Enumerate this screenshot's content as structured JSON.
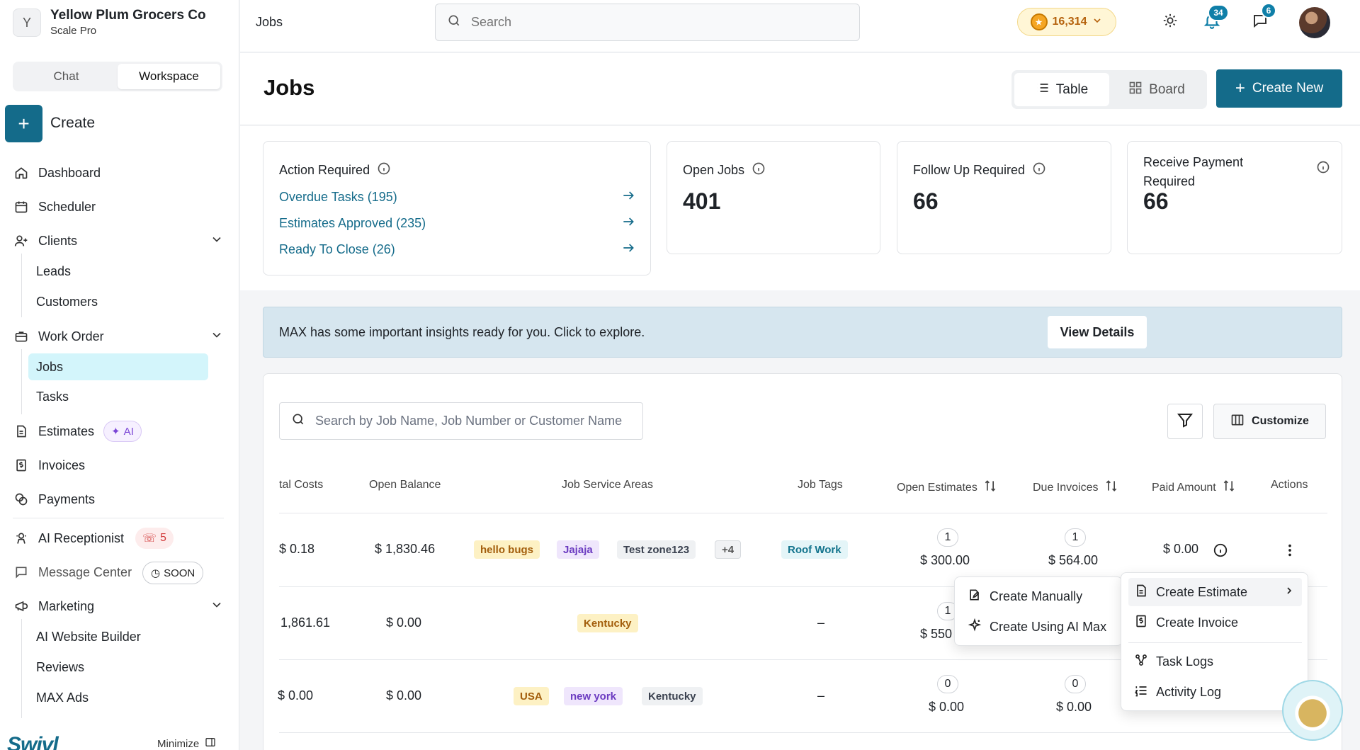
{
  "org": {
    "initial": "Y",
    "name": "Yellow Plum Grocers Co",
    "plan": "Scale Pro"
  },
  "sidebar": {
    "tabs": [
      "Chat",
      "Workspace"
    ],
    "create_label": "Create",
    "items": {
      "dashboard": "Dashboard",
      "scheduler": "Scheduler",
      "clients": "Clients",
      "leads": "Leads",
      "customers": "Customers",
      "work_order": "Work Order",
      "jobs": "Jobs",
      "tasks": "Tasks",
      "estimates": "Estimates",
      "estimates_badge": "AI",
      "invoices": "Invoices",
      "payments": "Payments",
      "ai_receptionist": "AI Receptionist",
      "ai_receptionist_count": "5",
      "message_center": "Message Center",
      "message_center_badge": "SOON",
      "marketing": "Marketing",
      "ai_website_builder": "AI Website Builder",
      "reviews": "Reviews",
      "max_ads": "MAX Ads"
    },
    "brand": "Swivl",
    "minimize": "Minimize"
  },
  "topbar": {
    "breadcrumb": "Jobs",
    "search_placeholder": "Search",
    "coins": "16,314",
    "notifications": "34",
    "messages": "6"
  },
  "page": {
    "title": "Jobs",
    "view_table": "Table",
    "view_board": "Board",
    "create_new": "Create New"
  },
  "stats": {
    "action_required": {
      "title": "Action Required",
      "links": [
        "Overdue Tasks (195)",
        "Estimates Approved (235)",
        "Ready To Close (26)"
      ]
    },
    "open_jobs": {
      "title": "Open Jobs",
      "value": "401"
    },
    "follow_up": {
      "title": "Follow Up Required",
      "value": "66"
    },
    "receive_payment": {
      "title_line1": "Receive Payment",
      "title_line2": "Required",
      "value": "66"
    }
  },
  "banner": {
    "text": "MAX has some important insights ready for you. Click to explore.",
    "button": "View Details"
  },
  "table": {
    "search_placeholder": "Search by Job Name, Job Number or Customer Name",
    "customize": "Customize",
    "headers": [
      "tal Costs",
      "Open Balance",
      "Job Service Areas",
      "Job Tags",
      "Open Estimates",
      "Due Invoices",
      "Paid Amount",
      "Actions"
    ],
    "rows": [
      {
        "costs": "$ 0.18",
        "balance": "$ 1,830.46",
        "areas": [
          "hello bugs",
          "Jajaja",
          "Test zone123",
          "+4"
        ],
        "tags": [
          "Roof Work"
        ],
        "est_count": "1",
        "est_amount": "$ 300.00",
        "inv_count": "1",
        "inv_amount": "$ 564.00",
        "paid": "$ 0.00"
      },
      {
        "costs": "1,861.61",
        "balance": "$ 0.00",
        "areas": [
          "Kentucky"
        ],
        "tags_dash": "–",
        "est_count": "1",
        "est_amount": "$ 550",
        "paid": ""
      },
      {
        "costs": "$ 0.00",
        "balance": "$ 0.00",
        "areas": [
          "USA",
          "new york",
          "Kentucky"
        ],
        "tags_dash": "–",
        "est_count": "0",
        "est_amount": "$ 0.00",
        "inv_count": "0",
        "inv_amount": "$ 0.00"
      }
    ]
  },
  "actions_menu": {
    "create_estimate": "Create Estimate",
    "create_invoice": "Create Invoice",
    "task_logs": "Task Logs",
    "activity_log": "Activity Log"
  },
  "estimate_submenu": {
    "create_manually": "Create Manually",
    "create_ai": "Create Using AI Max"
  },
  "colors": {
    "accent": "#146b8a",
    "active_nav": "#d3f5fb",
    "banner": "#d6e6ef"
  }
}
